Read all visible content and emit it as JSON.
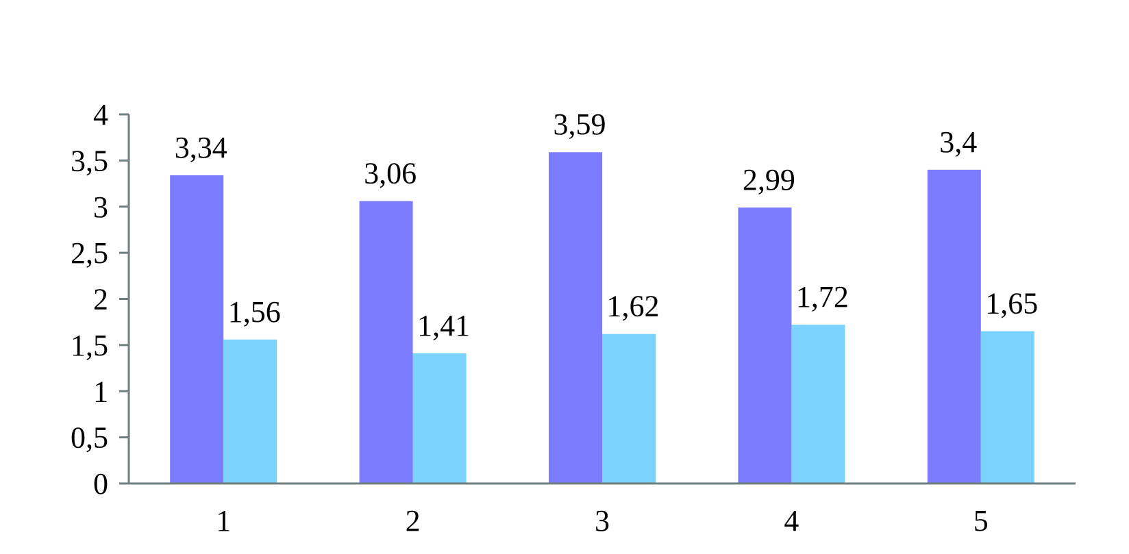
{
  "chart_data": {
    "type": "bar",
    "categories": [
      "1",
      "2",
      "3",
      "4",
      "5"
    ],
    "series": [
      {
        "values": [
          3.34,
          3.06,
          3.59,
          2.99,
          3.4
        ],
        "labels": [
          "3,34",
          "3,06",
          "3,59",
          "2,99",
          "3,4"
        ],
        "color": "#7b7bfd"
      },
      {
        "values": [
          1.56,
          1.41,
          1.62,
          1.72,
          1.65
        ],
        "labels": [
          "1,56",
          "1,41",
          "1,62",
          "1,72",
          "1,65"
        ],
        "color": "#7bd3fd"
      }
    ],
    "ylim": [
      0,
      4
    ],
    "yticks": [
      0,
      0.5,
      1,
      1.5,
      2,
      2.5,
      3,
      3.5,
      4
    ],
    "ytick_labels": [
      "0",
      "0,5",
      "1",
      "1,5",
      "2",
      "2,5",
      "3",
      "3,5",
      "4"
    ],
    "axis_color": "#6e7f80",
    "grid": false,
    "legend": "none"
  }
}
